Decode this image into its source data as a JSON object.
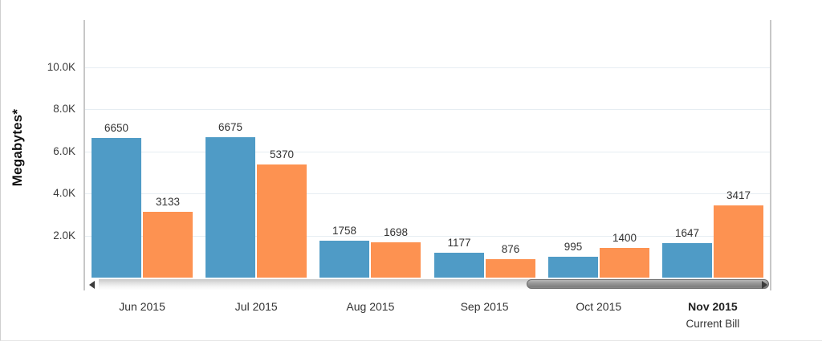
{
  "chart_data": {
    "type": "bar",
    "title": "",
    "xlabel": "",
    "ylabel": "Megabytes*",
    "categories": [
      "Jun 2015",
      "Jul 2015",
      "Aug 2015",
      "Sep 2015",
      "Oct 2015",
      "Nov 2015"
    ],
    "category_notes": [
      "",
      "",
      "",
      "",
      "",
      "Current Bill"
    ],
    "emphasized_category_index": 5,
    "series": [
      {
        "name": "blue",
        "color": "#4f9bc6",
        "values": [
          6650,
          6675,
          1758,
          1177,
          995,
          1647
        ]
      },
      {
        "name": "orange",
        "color": "#fd9251",
        "values": [
          3133,
          5370,
          1698,
          876,
          1400,
          3417
        ]
      }
    ],
    "y_ticks": [
      {
        "label": "2.0K",
        "value": 2000
      },
      {
        "label": "4.0K",
        "value": 4000
      },
      {
        "label": "6.0K",
        "value": 6000
      },
      {
        "label": "8.0K",
        "value": 8000
      },
      {
        "label": "10.0K",
        "value": 10000
      }
    ],
    "ylim": [
      0,
      12250
    ],
    "grid": true,
    "legend_position": "none",
    "bar_value_labels": true
  },
  "colors": {
    "bar_blue": "#4f9bc6",
    "bar_orange": "#fd9251",
    "gridline": "#e6edf2",
    "plot_border": "#c7c7c7",
    "label_text": "#333333"
  },
  "scrollbar": {
    "orientation": "horizontal",
    "left_arrow_icon": "arrow-left-icon",
    "right_arrow_icon": "arrow-right-icon"
  }
}
